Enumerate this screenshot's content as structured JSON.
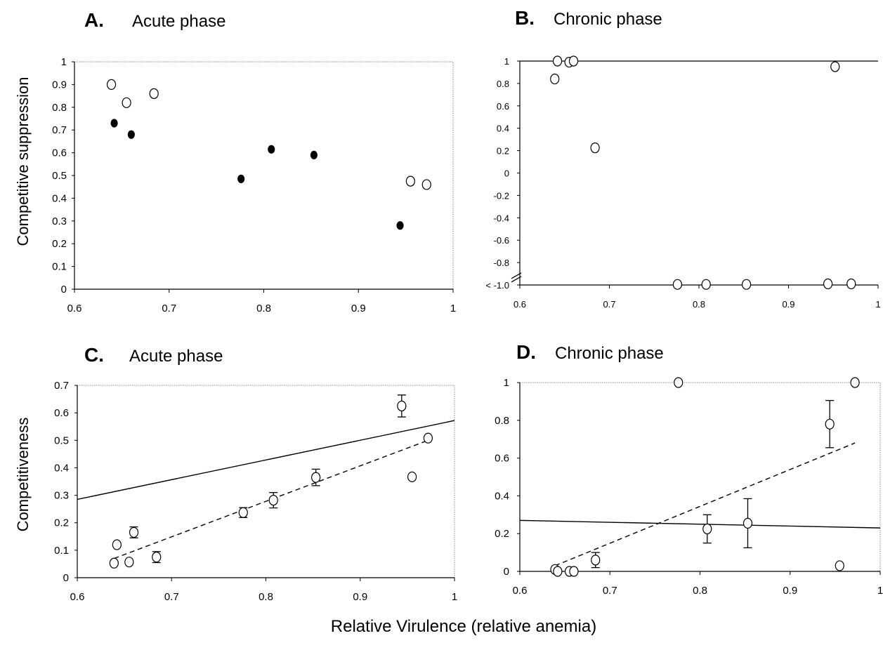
{
  "xlabel": "Relative Virulence (relative anemia)",
  "chart_data": [
    {
      "type": "scatter",
      "panel": "A.",
      "title": "Acute phase",
      "ylabel": "Competitive suppression",
      "xlim": [
        0.6,
        1
      ],
      "ylim": [
        0,
        1
      ],
      "x_ticks": [
        "0.6",
        "0.7",
        "0.8",
        "0.9",
        "1"
      ],
      "y_ticks": [
        "0",
        "0.1",
        "0.2",
        "0.3",
        "0.4",
        "0.5",
        "0.6",
        "0.7",
        "0.8",
        "0.9",
        "1"
      ],
      "series": [
        {
          "marker": "open",
          "points": [
            [
              0.639,
              0.9
            ],
            [
              0.655,
              0.82
            ],
            [
              0.684,
              0.86
            ],
            [
              0.955,
              0.475
            ],
            [
              0.972,
              0.46
            ]
          ]
        },
        {
          "marker": "filled",
          "points": [
            [
              0.642,
              0.73
            ],
            [
              0.66,
              0.68
            ],
            [
              0.776,
              0.485
            ],
            [
              0.808,
              0.615
            ],
            [
              0.853,
              0.59
            ],
            [
              0.944,
              0.28
            ]
          ]
        }
      ]
    },
    {
      "type": "scatter",
      "panel": "B.",
      "title": "Chronic phase",
      "ylabel": "",
      "xlim": [
        0.6,
        1
      ],
      "ylim": [
        -1,
        1
      ],
      "axis_break": true,
      "x_ticks": [
        "0.6",
        "0.7",
        "0.8",
        "0.9",
        "1"
      ],
      "y_ticks": [
        "< -1.0",
        "-0.8",
        "-0.6",
        "-0.4",
        "-0.2",
        "0",
        "0.2",
        "0.4",
        "0.6",
        "0.8",
        "1"
      ],
      "series": [
        {
          "marker": "open",
          "points": [
            [
              0.639,
              0.84
            ],
            [
              0.642,
              1.0
            ],
            [
              0.655,
              0.99
            ],
            [
              0.66,
              1.0
            ],
            [
              0.684,
              0.225
            ],
            [
              0.952,
              0.95
            ],
            [
              0.776,
              -0.995
            ],
            [
              0.808,
              -0.995
            ],
            [
              0.853,
              -0.995
            ],
            [
              0.944,
              -0.99
            ],
            [
              0.97,
              -0.99
            ]
          ]
        }
      ]
    },
    {
      "type": "scatter",
      "panel": "C.",
      "title": "Acute phase",
      "ylabel": "Competitiveness",
      "xlim": [
        0.6,
        1
      ],
      "ylim": [
        0,
        0.7
      ],
      "x_ticks": [
        "0.6",
        "0.7",
        "0.8",
        "0.9",
        "1"
      ],
      "y_ticks": [
        "0",
        "0.1",
        "0.2",
        "0.3",
        "0.4",
        "0.5",
        "0.6",
        "0.7"
      ],
      "series": [
        {
          "marker": "open",
          "points": [
            {
              "x": 0.639,
              "y": 0.053,
              "err": 0
            },
            {
              "x": 0.642,
              "y": 0.12,
              "err": 0
            },
            {
              "x": 0.655,
              "y": 0.057,
              "err": 0
            },
            {
              "x": 0.66,
              "y": 0.165,
              "err": 0.02
            },
            {
              "x": 0.684,
              "y": 0.075,
              "err": 0.02
            },
            {
              "x": 0.776,
              "y": 0.237,
              "err": 0.018
            },
            {
              "x": 0.808,
              "y": 0.282,
              "err": 0.028
            },
            {
              "x": 0.853,
              "y": 0.365,
              "err": 0.03
            },
            {
              "x": 0.944,
              "y": 0.625,
              "err": 0.04
            },
            {
              "x": 0.955,
              "y": 0.367,
              "err": 0
            },
            {
              "x": 0.972,
              "y": 0.508,
              "err": 0
            }
          ]
        }
      ],
      "lines": [
        {
          "style": "solid",
          "from": [
            0.6,
            0.285
          ],
          "to": [
            1.0,
            0.572
          ]
        },
        {
          "style": "dashed",
          "from": [
            0.639,
            0.07
          ],
          "to": [
            0.972,
            0.5
          ]
        }
      ]
    },
    {
      "type": "scatter",
      "panel": "D.",
      "title": "Chronic phase",
      "ylabel": "",
      "xlim": [
        0.6,
        1
      ],
      "ylim": [
        0,
        1
      ],
      "x_ticks": [
        "0.6",
        "0.7",
        "0.8",
        "0.9",
        "1"
      ],
      "y_ticks": [
        "0",
        "0.2",
        "0.4",
        "0.6",
        "0.8",
        "1"
      ],
      "series": [
        {
          "marker": "open",
          "points": [
            {
              "x": 0.639,
              "y": 0.01,
              "err": 0
            },
            {
              "x": 0.642,
              "y": 0.0,
              "err": 0
            },
            {
              "x": 0.655,
              "y": 0.0,
              "err": 0
            },
            {
              "x": 0.66,
              "y": 0.0,
              "err": 0
            },
            {
              "x": 0.684,
              "y": 0.06,
              "err": 0.04
            },
            {
              "x": 0.776,
              "y": 1.0,
              "err": 0
            },
            {
              "x": 0.808,
              "y": 0.225,
              "err": 0.075
            },
            {
              "x": 0.853,
              "y": 0.255,
              "err": 0.13
            },
            {
              "x": 0.944,
              "y": 0.78,
              "err": 0.125
            },
            {
              "x": 0.955,
              "y": 0.03,
              "err": 0
            },
            {
              "x": 0.972,
              "y": 1.0,
              "err": 0
            }
          ]
        }
      ],
      "lines": [
        {
          "style": "solid",
          "from": [
            0.6,
            0.27
          ],
          "to": [
            1.0,
            0.23
          ]
        },
        {
          "style": "dashed",
          "from": [
            0.639,
            0.03
          ],
          "to": [
            0.972,
            0.68
          ]
        }
      ]
    }
  ]
}
